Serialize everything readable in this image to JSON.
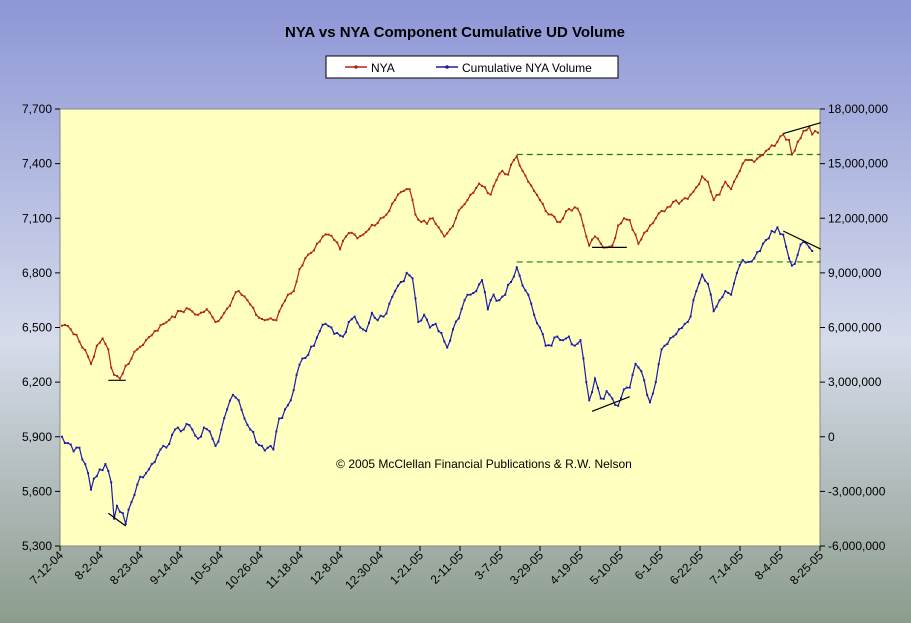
{
  "chart_data": {
    "type": "line",
    "title": "NYA vs NYA Component Cumulative UD Volume",
    "copyright": "© 2005 McClellan Financial Publications & R.W. Nelson",
    "legend": {
      "position": "top-center",
      "entries": [
        "NYA",
        "Cumulative NYA Volume"
      ]
    },
    "colors": {
      "nya": "#b0231a",
      "volume": "#1c1ca6",
      "plot_background": "#ffffc0",
      "frame_top": "#8f98d4",
      "frame_bottom": "#8c9c8c",
      "reference_line": "#1e7a1e",
      "trend_line": "#000000"
    },
    "x_tick_labels": [
      "7-12-04",
      "8-2-04",
      "8-23-04",
      "9-14-04",
      "10-5-04",
      "10-26-04",
      "11-18-04",
      "12-8-04",
      "12-30-04",
      "1-21-05",
      "2-11-05",
      "3-7-05",
      "3-29-05",
      "4-19-05",
      "5-10-05",
      "6-1-05",
      "6-22-05",
      "7-14-05",
      "8-4-05",
      "8-25-05"
    ],
    "y_left": {
      "ticks": [
        "7,700",
        "7,400",
        "7,100",
        "6,800",
        "6,500",
        "6,200",
        "5,900",
        "5,600",
        "5,300"
      ],
      "min": 5300,
      "max": 7700
    },
    "y_right": {
      "ticks": [
        "18,000,000",
        "15,000,000",
        "12,000,000",
        "9,000,000",
        "6,000,000",
        "3,000,000",
        "0",
        "-3,000,000",
        "-6,000,000"
      ],
      "min": -6000000,
      "max": 18000000
    },
    "grid": false,
    "series": [
      {
        "name": "NYA",
        "axis": "left",
        "anchors": [
          [
            0,
            6510
          ],
          [
            3,
            6490
          ],
          [
            5,
            6460
          ],
          [
            7,
            6390
          ],
          [
            9,
            6340
          ],
          [
            10,
            6300
          ],
          [
            12,
            6400
          ],
          [
            14,
            6440
          ],
          [
            16,
            6380
          ],
          [
            17,
            6280
          ],
          [
            18,
            6240
          ],
          [
            20,
            6220
          ],
          [
            22,
            6290
          ],
          [
            24,
            6330
          ],
          [
            26,
            6380
          ],
          [
            29,
            6430
          ],
          [
            32,
            6480
          ],
          [
            35,
            6520
          ],
          [
            38,
            6560
          ],
          [
            41,
            6590
          ],
          [
            44,
            6600
          ],
          [
            47,
            6570
          ],
          [
            50,
            6600
          ],
          [
            53,
            6530
          ],
          [
            56,
            6580
          ],
          [
            59,
            6660
          ],
          [
            61,
            6700
          ],
          [
            64,
            6650
          ],
          [
            67,
            6570
          ],
          [
            70,
            6540
          ],
          [
            72,
            6550
          ],
          [
            74,
            6540
          ],
          [
            76,
            6620
          ],
          [
            78,
            6680
          ],
          [
            80,
            6700
          ],
          [
            82,
            6820
          ],
          [
            84,
            6880
          ],
          [
            86,
            6910
          ],
          [
            88,
            6960
          ],
          [
            90,
            7000
          ],
          [
            92,
            7010
          ],
          [
            94,
            6980
          ],
          [
            96,
            6930
          ],
          [
            98,
            7000
          ],
          [
            100,
            7020
          ],
          [
            102,
            6990
          ],
          [
            104,
            7010
          ],
          [
            106,
            7040
          ],
          [
            108,
            7060
          ],
          [
            110,
            7100
          ],
          [
            112,
            7120
          ],
          [
            114,
            7180
          ],
          [
            116,
            7230
          ],
          [
            118,
            7250
          ],
          [
            120,
            7260
          ],
          [
            121,
            7200
          ],
          [
            122,
            7120
          ],
          [
            124,
            7080
          ],
          [
            126,
            7070
          ],
          [
            128,
            7100
          ],
          [
            130,
            7050
          ],
          [
            132,
            7000
          ],
          [
            134,
            7040
          ],
          [
            136,
            7100
          ],
          [
            138,
            7160
          ],
          [
            140,
            7200
          ],
          [
            142,
            7240
          ],
          [
            144,
            7290
          ],
          [
            146,
            7270
          ],
          [
            148,
            7230
          ],
          [
            150,
            7310
          ],
          [
            152,
            7360
          ],
          [
            154,
            7340
          ],
          [
            156,
            7420
          ],
          [
            157,
            7440
          ],
          [
            159,
            7360
          ],
          [
            161,
            7300
          ],
          [
            163,
            7250
          ],
          [
            165,
            7200
          ],
          [
            167,
            7140
          ],
          [
            169,
            7120
          ],
          [
            171,
            7080
          ],
          [
            173,
            7100
          ],
          [
            175,
            7150
          ],
          [
            177,
            7160
          ],
          [
            179,
            7120
          ],
          [
            181,
            7000
          ],
          [
            182,
            6950
          ],
          [
            184,
            7000
          ],
          [
            186,
            6960
          ],
          [
            188,
            6940
          ],
          [
            190,
            6950
          ],
          [
            192,
            7060
          ],
          [
            194,
            7100
          ],
          [
            196,
            7090
          ],
          [
            198,
            7010
          ],
          [
            199,
            6960
          ],
          [
            201,
            7020
          ],
          [
            203,
            7060
          ],
          [
            205,
            7100
          ],
          [
            207,
            7140
          ],
          [
            209,
            7160
          ],
          [
            211,
            7190
          ],
          [
            213,
            7180
          ],
          [
            215,
            7210
          ],
          [
            217,
            7230
          ],
          [
            219,
            7270
          ],
          [
            221,
            7330
          ],
          [
            223,
            7300
          ],
          [
            225,
            7200
          ],
          [
            227,
            7230
          ],
          [
            229,
            7300
          ],
          [
            231,
            7260
          ],
          [
            233,
            7330
          ],
          [
            235,
            7400
          ],
          [
            237,
            7420
          ],
          [
            239,
            7410
          ],
          [
            241,
            7440
          ],
          [
            243,
            7470
          ],
          [
            245,
            7500
          ],
          [
            247,
            7520
          ],
          [
            249,
            7560
          ],
          [
            251,
            7530
          ],
          [
            252,
            7450
          ],
          [
            254,
            7520
          ],
          [
            256,
            7580
          ],
          [
            258,
            7600
          ],
          [
            259,
            7560
          ],
          [
            261,
            7570
          ]
        ]
      },
      {
        "name": "Cumulative NYA Volume",
        "axis": "right",
        "anchors": [
          [
            0,
            0
          ],
          [
            2,
            -350000
          ],
          [
            4,
            -800000
          ],
          [
            6,
            -600000
          ],
          [
            8,
            -1500000
          ],
          [
            9,
            -2000000
          ],
          [
            10,
            -2900000
          ],
          [
            11,
            -2300000
          ],
          [
            13,
            -1800000
          ],
          [
            15,
            -1500000
          ],
          [
            17,
            -2500000
          ],
          [
            18,
            -4500000
          ],
          [
            19,
            -3800000
          ],
          [
            21,
            -4200000
          ],
          [
            22,
            -4800000
          ],
          [
            23,
            -4000000
          ],
          [
            25,
            -3200000
          ],
          [
            27,
            -2200000
          ],
          [
            29,
            -2000000
          ],
          [
            31,
            -1500000
          ],
          [
            33,
            -1000000
          ],
          [
            35,
            -500000
          ],
          [
            37,
            -400000
          ],
          [
            39,
            400000
          ],
          [
            41,
            300000
          ],
          [
            43,
            700000
          ],
          [
            45,
            400000
          ],
          [
            47,
            -100000
          ],
          [
            49,
            500000
          ],
          [
            51,
            300000
          ],
          [
            53,
            -500000
          ],
          [
            55,
            400000
          ],
          [
            57,
            1500000
          ],
          [
            59,
            2300000
          ],
          [
            61,
            2000000
          ],
          [
            63,
            1000000
          ],
          [
            65,
            400000
          ],
          [
            67,
            -300000
          ],
          [
            69,
            -500000
          ],
          [
            71,
            -600000
          ],
          [
            73,
            -700000
          ],
          [
            75,
            1000000
          ],
          [
            77,
            1500000
          ],
          [
            79,
            2000000
          ],
          [
            81,
            3400000
          ],
          [
            83,
            4300000
          ],
          [
            85,
            4500000
          ],
          [
            87,
            5000000
          ],
          [
            89,
            5800000
          ],
          [
            91,
            6200000
          ],
          [
            93,
            6000000
          ],
          [
            95,
            5700000
          ],
          [
            97,
            5500000
          ],
          [
            99,
            6300000
          ],
          [
            101,
            6600000
          ],
          [
            103,
            6000000
          ],
          [
            105,
            5800000
          ],
          [
            107,
            6800000
          ],
          [
            109,
            6400000
          ],
          [
            111,
            6600000
          ],
          [
            113,
            7300000
          ],
          [
            115,
            8000000
          ],
          [
            117,
            8500000
          ],
          [
            119,
            9000000
          ],
          [
            121,
            8700000
          ],
          [
            122,
            7600000
          ],
          [
            123,
            6300000
          ],
          [
            125,
            6700000
          ],
          [
            127,
            6000000
          ],
          [
            129,
            6200000
          ],
          [
            131,
            5700000
          ],
          [
            133,
            4900000
          ],
          [
            135,
            5900000
          ],
          [
            137,
            6500000
          ],
          [
            139,
            7500000
          ],
          [
            141,
            7800000
          ],
          [
            143,
            8000000
          ],
          [
            145,
            8600000
          ],
          [
            147,
            7000000
          ],
          [
            149,
            7800000
          ],
          [
            151,
            7500000
          ],
          [
            153,
            7800000
          ],
          [
            155,
            8500000
          ],
          [
            157,
            9300000
          ],
          [
            159,
            8300000
          ],
          [
            161,
            7800000
          ],
          [
            163,
            6700000
          ],
          [
            165,
            6000000
          ],
          [
            167,
            5000000
          ],
          [
            169,
            5000000
          ],
          [
            171,
            5500000
          ],
          [
            173,
            5300000
          ],
          [
            175,
            5500000
          ],
          [
            177,
            5000000
          ],
          [
            179,
            5300000
          ],
          [
            181,
            3000000
          ],
          [
            182,
            2000000
          ],
          [
            184,
            3200000
          ],
          [
            186,
            2100000
          ],
          [
            188,
            2500000
          ],
          [
            190,
            2100000
          ],
          [
            192,
            1700000
          ],
          [
            194,
            2600000
          ],
          [
            196,
            2700000
          ],
          [
            198,
            4000000
          ],
          [
            200,
            3600000
          ],
          [
            202,
            2300000
          ],
          [
            203,
            1900000
          ],
          [
            205,
            3000000
          ],
          [
            207,
            4800000
          ],
          [
            209,
            5100000
          ],
          [
            211,
            5500000
          ],
          [
            213,
            5900000
          ],
          [
            215,
            6200000
          ],
          [
            217,
            6600000
          ],
          [
            219,
            8000000
          ],
          [
            221,
            8900000
          ],
          [
            223,
            8400000
          ],
          [
            225,
            6900000
          ],
          [
            227,
            7500000
          ],
          [
            229,
            8000000
          ],
          [
            231,
            7800000
          ],
          [
            233,
            9000000
          ],
          [
            235,
            9700000
          ],
          [
            237,
            9600000
          ],
          [
            239,
            9800000
          ],
          [
            241,
            10200000
          ],
          [
            243,
            10800000
          ],
          [
            245,
            11300000
          ],
          [
            247,
            11500000
          ],
          [
            249,
            11100000
          ],
          [
            251,
            9800000
          ],
          [
            252,
            9400000
          ],
          [
            254,
            10000000
          ],
          [
            256,
            10700000
          ],
          [
            258,
            10400000
          ],
          [
            259,
            10200000
          ]
        ]
      }
    ],
    "reference_lines": [
      {
        "axis": "left",
        "y": 7450,
        "x_from": 157,
        "x_to": 262
      },
      {
        "axis": "right",
        "y": 9600000,
        "x_from": 157,
        "x_to": 262
      }
    ],
    "trend_lines": [
      {
        "axis": "left",
        "points": [
          [
            16,
            6210
          ],
          [
            22,
            6210
          ]
        ]
      },
      {
        "axis": "left",
        "points": [
          [
            183,
            6940
          ],
          [
            195,
            6940
          ]
        ]
      },
      {
        "axis": "left",
        "points": [
          [
            249,
            7565
          ],
          [
            262,
            7625
          ]
        ]
      },
      {
        "axis": "right",
        "points": [
          [
            16,
            -4200000
          ],
          [
            22,
            -4900000
          ]
        ]
      },
      {
        "axis": "right",
        "points": [
          [
            183,
            1400000
          ],
          [
            196,
            2200000
          ]
        ]
      },
      {
        "axis": "right",
        "points": [
          [
            249,
            11300000
          ],
          [
            262,
            10300000
          ]
        ]
      }
    ]
  }
}
